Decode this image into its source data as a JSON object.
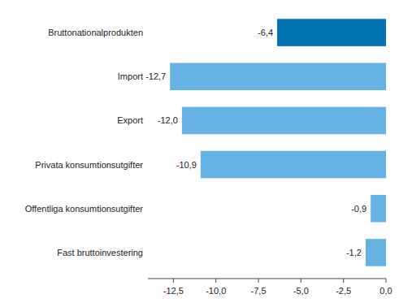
{
  "chart_data": {
    "type": "bar",
    "orientation": "horizontal",
    "categories": [
      "Bruttonationalprodukten",
      "Import",
      "Export",
      "Privata konsumtionsutgifter",
      "Offentliga konsumtionsutgifter",
      "Fast bruttoinvestering"
    ],
    "values": [
      -6.4,
      -12.7,
      -12.0,
      -10.9,
      -0.9,
      -1.2
    ],
    "value_labels": [
      "-6,4",
      "-12,7",
      "-12,0",
      "-10,9",
      "-0,9",
      "-1,2"
    ],
    "colors": [
      "#0073b0",
      "#66b2e4",
      "#66b2e4",
      "#66b2e4",
      "#66b2e4",
      "#66b2e4"
    ],
    "xlim": [
      -14,
      0
    ],
    "xticks": [
      {
        "value": -12.5,
        "label": "-12,5"
      },
      {
        "value": -10,
        "label": "-10,0"
      },
      {
        "value": -7.5,
        "label": "-7,5"
      },
      {
        "value": -5,
        "label": "-5,0"
      },
      {
        "value": -2.5,
        "label": "-2,5"
      },
      {
        "value": 0,
        "label": "0,0"
      }
    ],
    "grid": false,
    "data_labels": true
  }
}
